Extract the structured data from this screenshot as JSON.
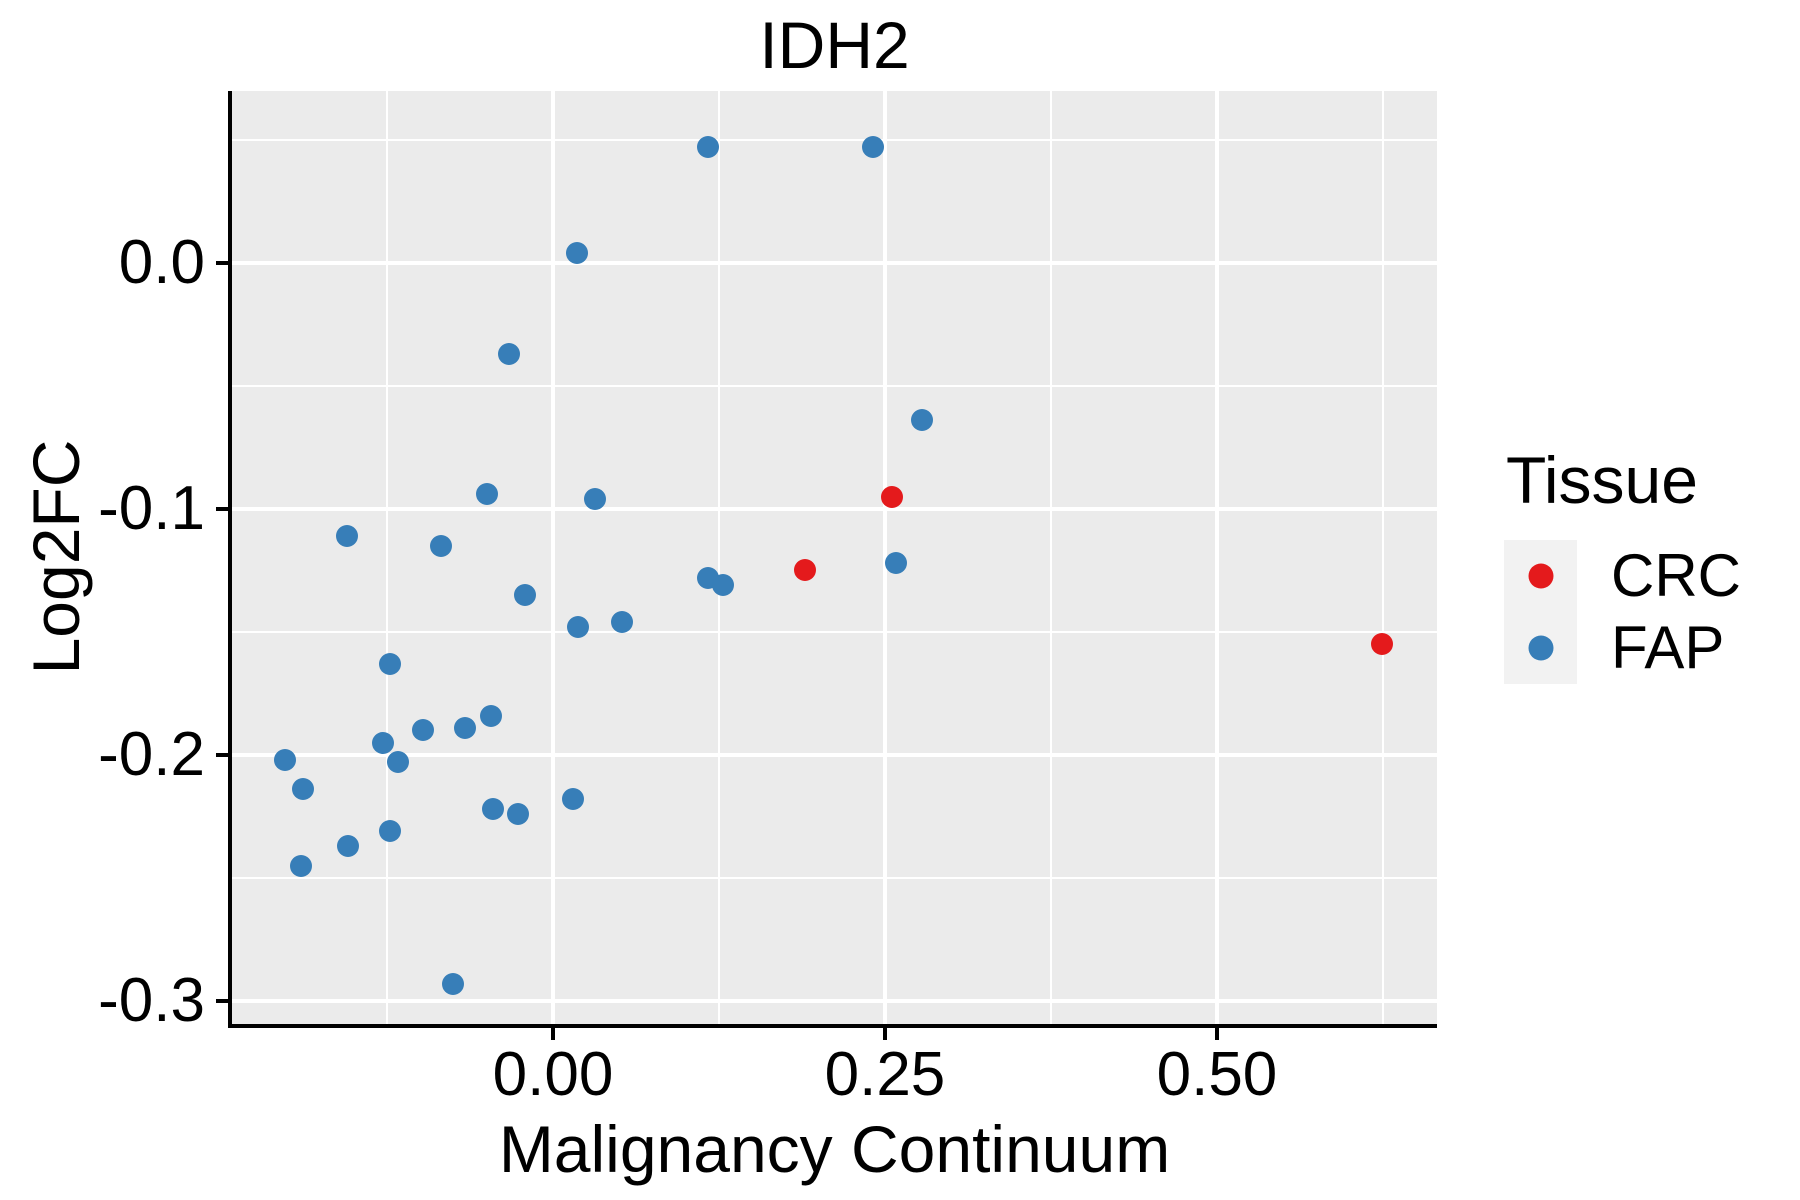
{
  "title": "IDH2",
  "colors": {
    "crc": "#E41A1C",
    "fap": "#377EB8",
    "panel_background": "#EBEBEB",
    "gridline": "#FFFFFF",
    "axis": "#000000",
    "text": "#000000",
    "legend_key_background": "#F2F2F2"
  },
  "chart_data": {
    "type": "scatter",
    "title": "IDH2",
    "xlabel": "Malignancy Continuum",
    "ylabel": "Log2FC",
    "xlim": [
      -0.2417,
      0.6657
    ],
    "ylim": [
      -0.3094,
      0.0699
    ],
    "grid": true,
    "x_ticks": [
      {
        "value": 0.0,
        "label": "0.00"
      },
      {
        "value": 0.25,
        "label": "0.25"
      },
      {
        "value": 0.5,
        "label": "0.50"
      }
    ],
    "y_ticks": [
      {
        "value": 0.0,
        "label": "0.0"
      },
      {
        "value": -0.1,
        "label": "-0.1"
      },
      {
        "value": -0.2,
        "label": "-0.2"
      },
      {
        "value": -0.3,
        "label": "-0.3"
      }
    ],
    "x_minor_gridlines": [
      -0.125,
      0.125,
      0.375,
      0.625
    ],
    "y_minor_gridlines": [
      0.05,
      -0.05,
      -0.15,
      -0.25
    ],
    "legend": {
      "title": "Tissue",
      "position": "right",
      "entries": [
        {
          "label": "CRC",
          "color": "#E41A1C"
        },
        {
          "label": "FAP",
          "color": "#377EB8"
        }
      ]
    },
    "series": [
      {
        "name": "CRC",
        "color": "#E41A1C",
        "points": [
          [
            0.255,
            -0.095
          ],
          [
            0.19,
            -0.125
          ],
          [
            0.624,
            -0.155
          ]
        ]
      },
      {
        "name": "FAP",
        "color": "#377EB8",
        "points": [
          [
            0.117,
            0.047
          ],
          [
            0.241,
            0.047
          ],
          [
            0.018,
            0.004
          ],
          [
            -0.033,
            -0.037
          ],
          [
            0.278,
            -0.064
          ],
          [
            -0.05,
            -0.094
          ],
          [
            0.032,
            -0.096
          ],
          [
            -0.155,
            -0.111
          ],
          [
            -0.084,
            -0.115
          ],
          [
            0.258,
            -0.122
          ],
          [
            0.117,
            -0.128
          ],
          [
            0.128,
            -0.131
          ],
          [
            -0.021,
            -0.135
          ],
          [
            0.019,
            -0.148
          ],
          [
            0.052,
            -0.146
          ],
          [
            -0.123,
            -0.163
          ],
          [
            -0.047,
            -0.184
          ],
          [
            -0.066,
            -0.189
          ],
          [
            -0.098,
            -0.19
          ],
          [
            -0.128,
            -0.195
          ],
          [
            -0.202,
            -0.202
          ],
          [
            -0.117,
            -0.203
          ],
          [
            -0.188,
            -0.214
          ],
          [
            0.015,
            -0.218
          ],
          [
            -0.045,
            -0.222
          ],
          [
            -0.026,
            -0.224
          ],
          [
            -0.123,
            -0.231
          ],
          [
            -0.154,
            -0.237
          ],
          [
            -0.19,
            -0.245
          ],
          [
            -0.075,
            -0.293
          ]
        ]
      }
    ]
  }
}
